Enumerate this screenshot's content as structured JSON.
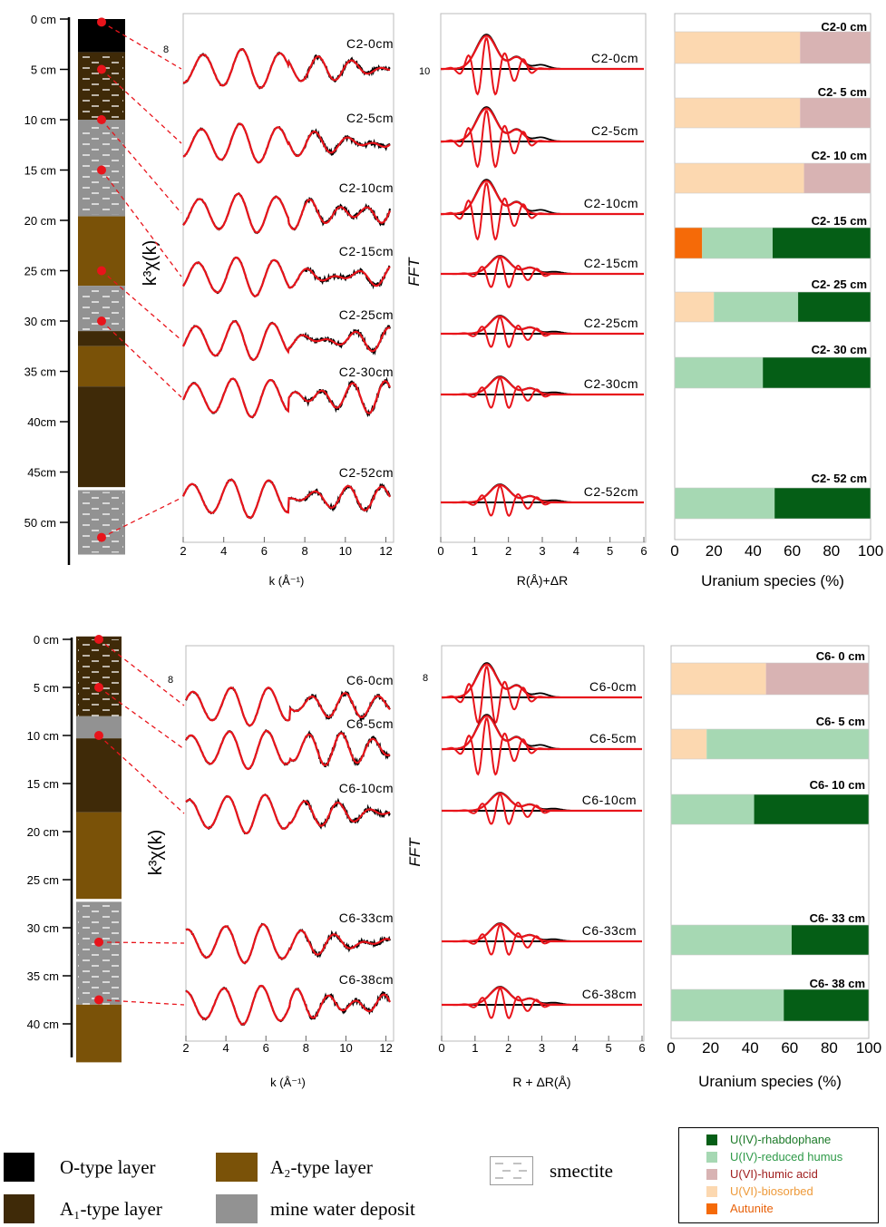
{
  "species": {
    "rhab": {
      "label": "U(IV)-rhabdophane",
      "color": "#055e16",
      "text_color": "#1c7a28"
    },
    "humus": {
      "label": "U(IV)-reduced humus",
      "color": "#a6d8b3",
      "text_color": "#2e9a48"
    },
    "humic": {
      "label": "U(VI)-humic acid",
      "color": "#d8b3b3",
      "text_color": "#a02020"
    },
    "bios": {
      "label": "U(VI)-biosorbed",
      "color": "#fcd8b0",
      "text_color": "#ee9a3a"
    },
    "aut": {
      "label": "Autunite",
      "color": "#f56a08",
      "text_color": "#e8620a"
    }
  },
  "layer_legend": {
    "o": {
      "label": "O-type layer",
      "color": "#000000"
    },
    "a1": {
      "label": "A₁-type layer",
      "color": "#3f2a08"
    },
    "a2": {
      "label": "A₂-type layer",
      "color": "#7a5208"
    },
    "mine": {
      "label": "mine water deposit",
      "color": "#929292"
    },
    "smectite": {
      "label": "smectite"
    }
  },
  "panels": [
    {
      "depth_ticks": [
        "0 cm",
        "5 cm",
        "10 cm",
        "15 cm",
        "20 cm",
        "25 cm",
        "30 cm",
        "35 cm",
        "40cm",
        "45cm",
        "50 cm"
      ],
      "layers": [
        {
          "type": "o",
          "from": 0,
          "to": 3.3
        },
        {
          "type": "a1",
          "from": 3.3,
          "to": 10
        },
        {
          "type": "mine",
          "from": 10,
          "to": 19.6
        },
        {
          "type": "a2",
          "from": 19.6,
          "to": 26.5
        },
        {
          "type": "mine",
          "from": 26.5,
          "to": 31
        },
        {
          "type": "a1",
          "from": 31,
          "to": 32.5
        },
        {
          "type": "a2",
          "from": 32.5,
          "to": 36.5
        },
        {
          "type": "a1",
          "from": 36.5,
          "to": 46.5
        },
        {
          "type": "mine",
          "from": 46.8,
          "to": 53.2
        }
      ],
      "smectite_zones": [
        [
          3.5,
          10
        ],
        [
          10.5,
          19.4
        ],
        [
          26.7,
          31
        ],
        [
          47,
          53
        ]
      ],
      "exafs_ylabel": "k³χ(k)",
      "exafs_xlabel": "k (Å⁻¹)",
      "exafs_xticks": [
        "2",
        "4",
        "6",
        "8",
        "10",
        "12"
      ],
      "exafs_scale": "8",
      "fft_ylabel": "FFT",
      "fft_xlabel": "R(Å)+ΔR",
      "fft_xticks": [
        "0",
        "1",
        "2",
        "3",
        "4",
        "5",
        "6"
      ],
      "fft_scale": "10",
      "species_xlabel": "Uranium species   (%)",
      "species_xticks": [
        "0",
        "20",
        "40",
        "60",
        "80",
        "100"
      ],
      "samples": [
        {
          "name": "C2-0cm",
          "bar_label": "C2-0 cm",
          "depth": 0.3,
          "bars": [
            {
              "s": "bios",
              "v": 64
            },
            {
              "s": "humic",
              "v": 36
            }
          ]
        },
        {
          "name": "C2-5cm",
          "bar_label": "C2- 5 cm",
          "depth": 5,
          "bars": [
            {
              "s": "bios",
              "v": 64
            },
            {
              "s": "humic",
              "v": 36
            }
          ]
        },
        {
          "name": "C2-10cm",
          "bar_label": "C2- 10 cm",
          "depth": 10,
          "bars": [
            {
              "s": "bios",
              "v": 66
            },
            {
              "s": "humic",
              "v": 34
            }
          ]
        },
        {
          "name": "C2-15cm",
          "bar_label": "C2- 15 cm",
          "depth": 15,
          "bars": [
            {
              "s": "aut",
              "v": 14
            },
            {
              "s": "humus",
              "v": 36
            },
            {
              "s": "rhab",
              "v": 50
            }
          ]
        },
        {
          "name": "C2-25cm",
          "bar_label": "C2- 25 cm",
          "depth": 25,
          "bars": [
            {
              "s": "bios",
              "v": 20
            },
            {
              "s": "humus",
              "v": 43
            },
            {
              "s": "rhab",
              "v": 37
            }
          ]
        },
        {
          "name": "C2-30cm",
          "bar_label": "C2- 30 cm",
          "depth": 30,
          "bars": [
            {
              "s": "humus",
              "v": 45
            },
            {
              "s": "rhab",
              "v": 55
            }
          ]
        },
        {
          "name": "C2-52cm",
          "bar_label": "C2- 52 cm",
          "depth": 51.5,
          "bars": [
            {
              "s": "humus",
              "v": 51
            },
            {
              "s": "rhab",
              "v": 49
            }
          ]
        }
      ]
    },
    {
      "depth_ticks": [
        "0 cm",
        "5 cm",
        "10 cm",
        "15 cm",
        "20 cm",
        "25 cm",
        "30 cm",
        "35 cm",
        "40 cm"
      ],
      "layers": [
        {
          "type": "a1",
          "from": -0.3,
          "to": 8
        },
        {
          "type": "mine",
          "from": 8,
          "to": 10.3
        },
        {
          "type": "a1",
          "from": 10.3,
          "to": 18
        },
        {
          "type": "a2",
          "from": 18,
          "to": 27
        },
        {
          "type": "mine",
          "from": 27.3,
          "to": 38
        },
        {
          "type": "a2",
          "from": 38,
          "to": 44
        }
      ],
      "smectite_zones": [
        [
          0,
          8
        ],
        [
          27.3,
          38
        ]
      ],
      "exafs_ylabel": "k³χ(k)",
      "exafs_xlabel": "k (Å⁻¹)",
      "exafs_xticks": [
        "2",
        "4",
        "6",
        "8",
        "10",
        "12"
      ],
      "exafs_scale": "8",
      "fft_ylabel": "FFT",
      "fft_xlabel": "R + ΔR(Å)",
      "fft_xticks": [
        "0",
        "1",
        "2",
        "3",
        "4",
        "5",
        "6"
      ],
      "fft_scale": "8",
      "species_xlabel": "Uranium species   (%)",
      "species_xticks": [
        "0",
        "20",
        "40",
        "60",
        "80",
        "100"
      ],
      "samples": [
        {
          "name": "C6-0cm",
          "bar_label": "C6- 0 cm",
          "depth": 0,
          "bars": [
            {
              "s": "bios",
              "v": 48
            },
            {
              "s": "humic",
              "v": 52
            }
          ]
        },
        {
          "name": "C6-5cm",
          "bar_label": "C6- 5 cm",
          "depth": 5,
          "bars": [
            {
              "s": "bios",
              "v": 18
            },
            {
              "s": "humus",
              "v": 82
            }
          ]
        },
        {
          "name": "C6-10cm",
          "bar_label": "C6- 10 cm",
          "depth": 10,
          "bars": [
            {
              "s": "humus",
              "v": 42
            },
            {
              "s": "rhab",
              "v": 58
            }
          ]
        },
        {
          "name": "C6-33cm",
          "bar_label": "C6- 33 cm",
          "depth": 31.5,
          "bars": [
            {
              "s": "humus",
              "v": 61
            },
            {
              "s": "rhab",
              "v": 39
            }
          ]
        },
        {
          "name": "C6-38cm",
          "bar_label": "C6- 38 cm",
          "depth": 37.5,
          "bars": [
            {
              "s": "humus",
              "v": 57
            },
            {
              "s": "rhab",
              "v": 43
            }
          ]
        }
      ]
    }
  ],
  "chart_data": [
    {
      "type": "bar",
      "orientation": "horizontal-stacked",
      "categories": [
        "C2-0 cm",
        "C2- 5 cm",
        "C2- 10 cm",
        "C2- 15 cm",
        "C2- 25 cm",
        "C2- 30 cm",
        "C2- 52 cm"
      ],
      "series": [
        {
          "name": "U(IV)-rhabdophane",
          "values": [
            0,
            0,
            0,
            50,
            37,
            55,
            49
          ]
        },
        {
          "name": "U(IV)-reduced humus",
          "values": [
            0,
            0,
            0,
            36,
            43,
            45,
            51
          ]
        },
        {
          "name": "U(VI)-humic acid",
          "values": [
            36,
            36,
            34,
            0,
            0,
            0,
            0
          ]
        },
        {
          "name": "U(VI)-biosorbed",
          "values": [
            64,
            64,
            66,
            0,
            20,
            0,
            0
          ]
        },
        {
          "name": "Autunite",
          "values": [
            0,
            0,
            0,
            14,
            0,
            0,
            0
          ]
        }
      ],
      "xlabel": "Uranium species   (%)",
      "xlim": [
        0,
        100
      ]
    },
    {
      "type": "bar",
      "orientation": "horizontal-stacked",
      "categories": [
        "C6- 0 cm",
        "C6- 5 cm",
        "C6- 10 cm",
        "C6- 33 cm",
        "C6- 38 cm"
      ],
      "series": [
        {
          "name": "U(IV)-rhabdophane",
          "values": [
            0,
            0,
            58,
            39,
            43
          ]
        },
        {
          "name": "U(IV)-reduced humus",
          "values": [
            0,
            82,
            42,
            61,
            57
          ]
        },
        {
          "name": "U(VI)-humic acid",
          "values": [
            52,
            0,
            0,
            0,
            0
          ]
        },
        {
          "name": "U(VI)-biosorbed",
          "values": [
            48,
            18,
            0,
            0,
            0
          ]
        },
        {
          "name": "Autunite",
          "values": [
            0,
            0,
            0,
            0,
            0
          ]
        }
      ],
      "xlabel": "Uranium species   (%)",
      "xlim": [
        0,
        100
      ]
    },
    {
      "type": "line",
      "series": [
        "C2-0cm",
        "C2-5cm",
        "C2-10cm",
        "C2-15cm",
        "C2-25cm",
        "C2-30cm",
        "C2-52cm",
        "C6-0cm",
        "C6-5cm",
        "C6-10cm",
        "C6-33cm",
        "C6-38cm"
      ],
      "xlabel": "k (Å⁻¹)",
      "ylabel": "k³χ(k)",
      "xlim": [
        2,
        12.2
      ]
    },
    {
      "type": "line",
      "series": [
        "C2-0cm",
        "C2-5cm",
        "C2-10cm",
        "C2-15cm",
        "C2-25cm",
        "C2-30cm",
        "C2-52cm",
        "C6-0cm",
        "C6-5cm",
        "C6-10cm",
        "C6-33cm",
        "C6-38cm"
      ],
      "xlabel": "R(Å)+ΔR",
      "ylabel": "FFT",
      "xlim": [
        0,
        6
      ]
    }
  ]
}
